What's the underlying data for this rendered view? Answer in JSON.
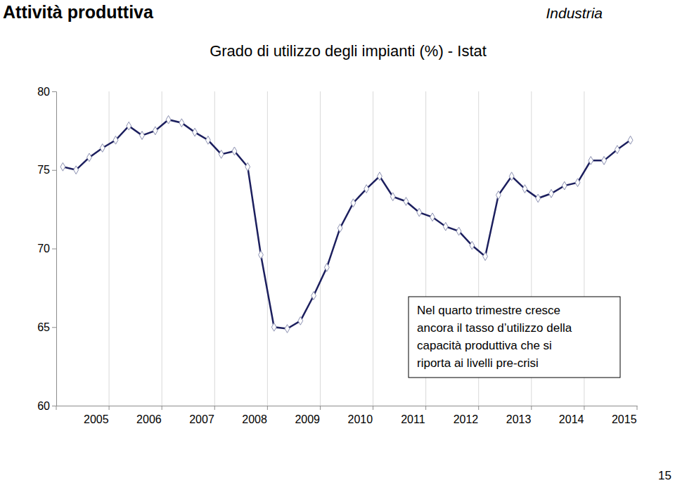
{
  "page": {
    "section": "Attività produttiva",
    "category": "Industria",
    "number": "15"
  },
  "chart_data": {
    "type": "line",
    "title": "Grado di utilizzo degli impianti (%) - Istat",
    "categories": [
      null,
      null,
      "2005",
      null,
      null,
      null,
      "2006",
      null,
      null,
      null,
      "2007",
      null,
      null,
      null,
      "2008",
      null,
      null,
      null,
      "2009",
      null,
      null,
      null,
      "2010",
      null,
      null,
      null,
      "2011",
      null,
      null,
      null,
      "2012",
      null,
      null,
      null,
      "2013",
      null,
      null,
      null,
      "2014",
      null,
      null,
      null,
      "2015",
      null
    ],
    "values": [
      75.2,
      75.0,
      75.8,
      76.4,
      76.9,
      77.8,
      77.2,
      77.5,
      78.2,
      78.0,
      77.4,
      76.9,
      76.0,
      76.2,
      75.2,
      69.6,
      65.0,
      64.9,
      65.4,
      67.0,
      68.8,
      71.3,
      72.9,
      73.8,
      74.6,
      73.3,
      73.0,
      72.3,
      72.0,
      71.4,
      71.1,
      70.2,
      69.5,
      73.4,
      74.6,
      73.8,
      73.2,
      73.5,
      74.0,
      74.2,
      75.6,
      75.6,
      76.3,
      76.9
    ],
    "color": "#1c1f5e",
    "marker": "diamond",
    "ylim": [
      60,
      80
    ],
    "yticks": [
      60,
      65,
      70,
      75,
      80
    ],
    "grid": true,
    "annotations": [
      "Nel quarto trimestre cresce",
      "ancora il tasso d’utilizzo della",
      "capacità produttiva che si",
      "riporta ai livelli pre-crisi"
    ]
  }
}
